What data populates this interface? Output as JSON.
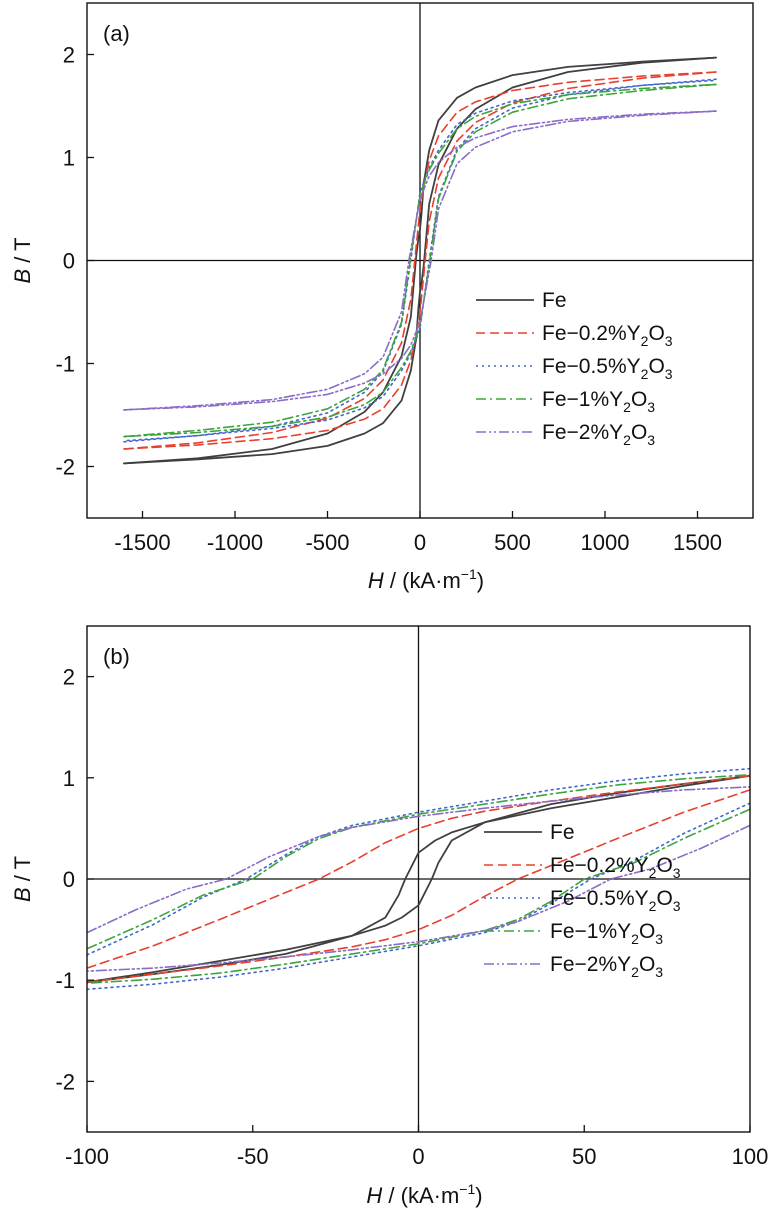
{
  "colors": {
    "Fe": "#404040",
    "Fe-0.2%Y2O3": "#e8402e",
    "Fe-0.5%Y2O3": "#4466cc",
    "Fe-1%Y2O3": "#3aa63a",
    "Fe-2%Y2O3": "#8a6cc8"
  },
  "chart_data": [
    {
      "type": "line",
      "panel_label": "(a)",
      "xlabel": {
        "italic": "H",
        "rest": " / (kA·m",
        "sup": "−1",
        "close": ")"
      },
      "ylabel": {
        "italic": "B",
        "rest": " / T"
      },
      "xlim": [
        -1800,
        1800
      ],
      "ylim": [
        -2.5,
        2.5
      ],
      "xticks": [
        -1500,
        -1000,
        -500,
        0,
        500,
        1000,
        1500
      ],
      "xtick_labels": [
        "-1500",
        "-1000",
        "-500",
        "0",
        "500",
        "1000",
        "1500"
      ],
      "yticks": [
        -2,
        -1,
        0,
        1,
        2
      ],
      "ytick_labels": [
        "-2",
        "-1",
        "0",
        "1",
        "2"
      ],
      "zero_lines": true,
      "legend_position": "lower-right",
      "series": [
        {
          "name": "Fe",
          "key": "Fe",
          "style": "solid",
          "x": [
            -1600,
            -1200,
            -800,
            -500,
            -300,
            -200,
            -100,
            -50,
            -20,
            -8,
            0,
            8,
            20,
            50,
            100,
            200,
            300,
            500,
            800,
            1200,
            1600
          ],
          "y_upper": [
            -1.97,
            -1.92,
            -1.83,
            -1.68,
            -1.47,
            -1.28,
            -0.93,
            -0.55,
            0.05,
            0.22,
            0.3,
            0.45,
            0.75,
            1.07,
            1.36,
            1.58,
            1.68,
            1.8,
            1.88,
            1.93,
            1.97
          ]
        },
        {
          "name": "Fe-0.2%Y2O3",
          "key": "Fe-0.2%Y2O3",
          "style": "dashed",
          "x": [
            -1600,
            -1200,
            -800,
            -500,
            -300,
            -200,
            -100,
            -50,
            -28,
            0,
            28,
            50,
            100,
            200,
            300,
            500,
            800,
            1200,
            1600
          ],
          "y_upper": [
            -1.83,
            -1.77,
            -1.67,
            -1.53,
            -1.34,
            -1.16,
            -0.8,
            -0.38,
            0.0,
            0.5,
            0.8,
            0.97,
            1.21,
            1.44,
            1.54,
            1.65,
            1.73,
            1.79,
            1.83
          ]
        },
        {
          "name": "Fe-0.5%Y2O3",
          "key": "Fe-0.5%Y2O3",
          "style": "dotted",
          "x": [
            -1600,
            -1200,
            -800,
            -500,
            -300,
            -200,
            -100,
            -50,
            0,
            50,
            100,
            200,
            300,
            500,
            800,
            1200,
            1600
          ],
          "y_upper": [
            -1.76,
            -1.7,
            -1.61,
            -1.48,
            -1.28,
            -1.08,
            -0.62,
            0.0,
            0.66,
            0.9,
            1.07,
            1.32,
            1.43,
            1.55,
            1.63,
            1.7,
            1.75
          ]
        },
        {
          "name": "Fe-1%Y2O3",
          "key": "Fe-1%Y2O3",
          "style": "dashdot",
          "x": [
            -1600,
            -1200,
            -800,
            -500,
            -300,
            -200,
            -100,
            -53,
            0,
            50,
            100,
            200,
            300,
            500,
            800,
            1200,
            1600
          ],
          "y_upper": [
            -1.71,
            -1.65,
            -1.57,
            -1.44,
            -1.25,
            -1.06,
            -0.6,
            0.0,
            0.64,
            0.88,
            1.04,
            1.28,
            1.4,
            1.52,
            1.61,
            1.67,
            1.71
          ]
        },
        {
          "name": "Fe-2%Y2O3",
          "key": "Fe-2%Y2O3",
          "style": "dashdotdot",
          "x": [
            -1600,
            -1200,
            -800,
            -500,
            -300,
            -200,
            -100,
            -60,
            0,
            50,
            100,
            200,
            300,
            500,
            800,
            1200,
            1600
          ],
          "y_upper": [
            -1.45,
            -1.41,
            -1.35,
            -1.25,
            -1.1,
            -0.94,
            -0.5,
            0.0,
            0.6,
            0.82,
            0.95,
            1.1,
            1.19,
            1.3,
            1.37,
            1.42,
            1.45
          ]
        }
      ]
    },
    {
      "type": "line",
      "panel_label": "(b)",
      "xlabel": {
        "italic": "H",
        "rest": " / (kA·m",
        "sup": "−1",
        "close": ")"
      },
      "ylabel": {
        "italic": "B",
        "rest": " / T"
      },
      "xlim": [
        -100,
        100
      ],
      "ylim": [
        -2.5,
        2.5
      ],
      "xticks": [
        -100,
        -50,
        0,
        50,
        100
      ],
      "xtick_labels": [
        "-100",
        "-50",
        "0",
        "50",
        "100"
      ],
      "yticks": [
        -2,
        -1,
        0,
        1,
        2
      ],
      "ytick_labels": [
        "-2",
        "-1",
        "0",
        "1",
        "2"
      ],
      "zero_lines": true,
      "legend_position": "lower-right",
      "series": [
        {
          "name": "Fe",
          "key": "Fe",
          "style": "solid",
          "x": [
            -100,
            -80,
            -60,
            -40,
            -20,
            -10,
            -6,
            -4,
            0,
            5,
            10,
            20,
            40,
            60,
            80,
            100
          ],
          "y_upper": [
            -1.02,
            -0.94,
            -0.85,
            -0.74,
            -0.56,
            -0.38,
            -0.16,
            0.0,
            0.26,
            0.38,
            0.46,
            0.56,
            0.7,
            0.81,
            0.92,
            1.02
          ]
        },
        {
          "name": "Fe-0.2%Y2O3",
          "key": "Fe-0.2%Y2O3",
          "style": "dashed",
          "x": [
            -100,
            -80,
            -60,
            -45,
            -30,
            -20,
            -10,
            0,
            10,
            20,
            40,
            60,
            80,
            100
          ],
          "y_upper": [
            -0.88,
            -0.66,
            -0.4,
            -0.2,
            0.0,
            0.17,
            0.36,
            0.5,
            0.6,
            0.67,
            0.77,
            0.86,
            0.94,
            1.02
          ]
        },
        {
          "name": "Fe-0.5%Y2O3",
          "key": "Fe-0.5%Y2O3",
          "style": "dotted",
          "x": [
            -100,
            -80,
            -65,
            -52,
            -40,
            -30,
            -20,
            0,
            20,
            40,
            60,
            80,
            100
          ],
          "y_upper": [
            -0.75,
            -0.45,
            -0.18,
            0.0,
            0.24,
            0.42,
            0.53,
            0.66,
            0.77,
            0.88,
            0.97,
            1.04,
            1.09
          ]
        },
        {
          "name": "Fe-1%Y2O3",
          "key": "Fe-1%Y2O3",
          "style": "dashdot",
          "x": [
            -100,
            -80,
            -65,
            -50,
            -40,
            -30,
            -20,
            0,
            20,
            40,
            60,
            80,
            100
          ],
          "y_upper": [
            -0.69,
            -0.4,
            -0.16,
            0.0,
            0.22,
            0.4,
            0.51,
            0.64,
            0.74,
            0.84,
            0.93,
            0.99,
            1.03
          ]
        },
        {
          "name": "Fe-2%Y2O3",
          "key": "Fe-2%Y2O3",
          "style": "dashdotdot",
          "x": [
            -100,
            -85,
            -70,
            -58,
            -45,
            -30,
            -20,
            0,
            20,
            40,
            60,
            80,
            100
          ],
          "y_upper": [
            -0.53,
            -0.3,
            -0.1,
            0.0,
            0.22,
            0.42,
            0.51,
            0.62,
            0.7,
            0.77,
            0.83,
            0.88,
            0.91
          ]
        }
      ]
    }
  ],
  "legend": [
    {
      "key": "Fe",
      "base": "Fe",
      "parts": []
    },
    {
      "key": "Fe-0.2%Y2O3",
      "base": "Fe−0.2%Y",
      "parts": [
        "2",
        "O",
        "3"
      ]
    },
    {
      "key": "Fe-0.5%Y2O3",
      "base": "Fe−0.5%Y",
      "parts": [
        "2",
        "O",
        "3"
      ]
    },
    {
      "key": "Fe-1%Y2O3",
      "base": "Fe−1%Y",
      "parts": [
        "2",
        "O",
        "3"
      ]
    },
    {
      "key": "Fe-2%Y2O3",
      "base": "Fe−2%Y",
      "parts": [
        "2",
        "O",
        "3"
      ]
    }
  ]
}
